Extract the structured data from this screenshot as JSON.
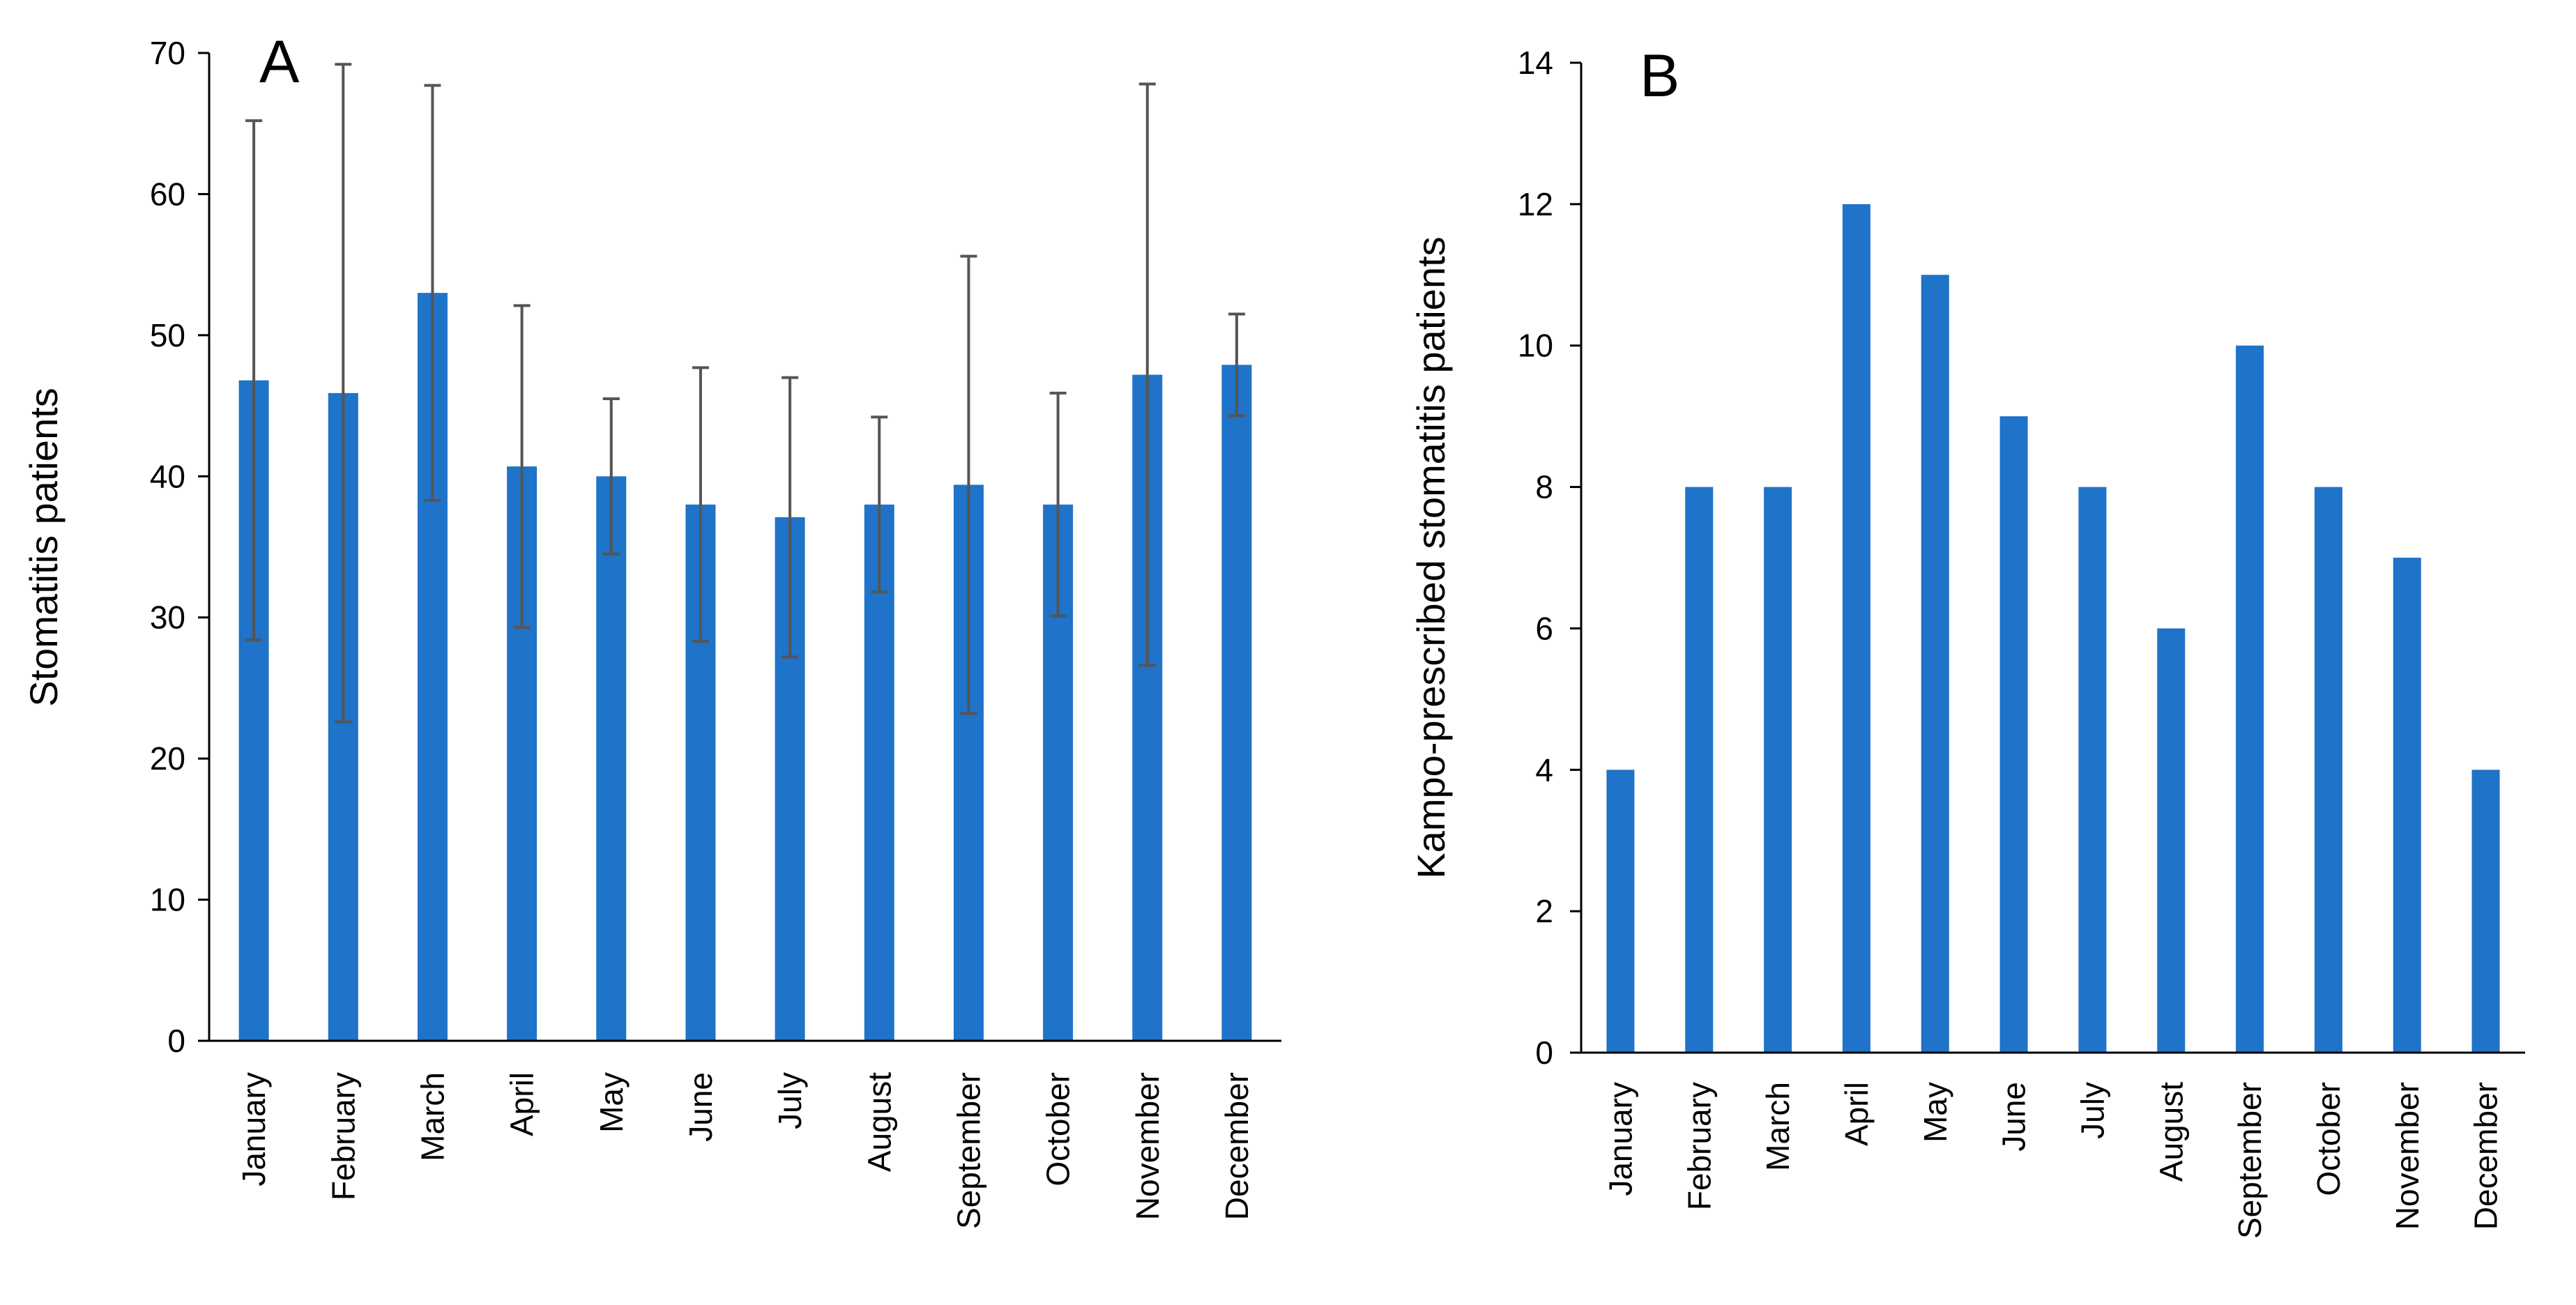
{
  "chart_data": [
    {
      "panel": "A",
      "type": "bar",
      "title": "",
      "xlabel": "",
      "ylabel": "Stomatitis patients",
      "ylim": [
        0,
        70
      ],
      "yticks": [
        0,
        10,
        20,
        30,
        40,
        50,
        60,
        70
      ],
      "categories": [
        "January",
        "February",
        "March",
        "April",
        "May",
        "June",
        "July",
        "August",
        "September",
        "October",
        "November",
        "December"
      ],
      "values": [
        46.8,
        45.9,
        53.0,
        40.7,
        40.0,
        38.0,
        37.1,
        38.0,
        39.4,
        38.0,
        47.2,
        47.9
      ],
      "error": [
        18.4,
        23.3,
        14.7,
        11.4,
        5.5,
        9.7,
        9.9,
        6.2,
        16.2,
        7.9,
        20.6,
        3.6
      ],
      "grid": false
    },
    {
      "panel": "B",
      "type": "bar",
      "title": "",
      "xlabel": "",
      "ylabel": "Kampo-prescribed stomatitis patients",
      "ylim": [
        0,
        14
      ],
      "yticks": [
        0,
        2,
        4,
        6,
        8,
        10,
        12,
        14
      ],
      "categories": [
        "January",
        "February",
        "March",
        "April",
        "May",
        "June",
        "July",
        "August",
        "September",
        "October",
        "November",
        "December"
      ],
      "values": [
        4,
        8,
        8,
        12,
        11,
        9,
        8,
        6,
        10,
        8,
        7,
        4
      ],
      "grid": false
    }
  ],
  "colors": {
    "bar": "#1f73c8",
    "axis": "#000000",
    "error": "#555555"
  }
}
